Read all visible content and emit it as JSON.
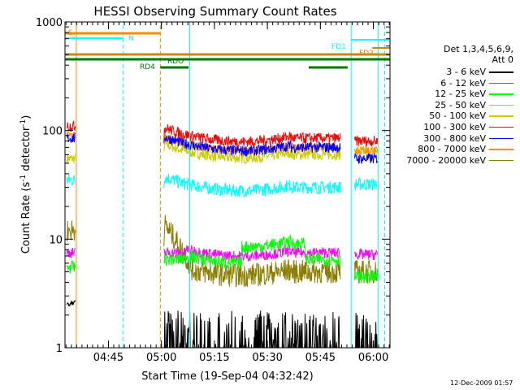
{
  "chart_data": {
    "type": "line",
    "title": "HESSI Observing Summary Count Rates",
    "xlabel": "Start Time (19-Sep-04 04:32:42)",
    "ylabel_main": "Count Rate (s",
    "ylabel_sup1": "-1",
    "ylabel_mid": " detector",
    "ylabel_sup2": "-1",
    "ylabel_end": ")",
    "yscale": "log",
    "ylim": [
      1,
      1000
    ],
    "xlim_minutes": [
      0,
      92
    ],
    "x_ticks": [
      {
        "label": "04:45",
        "t": 12.3
      },
      {
        "label": "05:00",
        "t": 27.3
      },
      {
        "label": "05:15",
        "t": 42.3
      },
      {
        "label": "05:30",
        "t": 57.3
      },
      {
        "label": "05:45",
        "t": 72.3
      },
      {
        "label": "06:00",
        "t": 87.3
      }
    ],
    "y_ticks": [
      {
        "label": "1",
        "v": 1
      },
      {
        "label": "10",
        "v": 10
      },
      {
        "label": "100",
        "v": 100
      },
      {
        "label": "1000",
        "v": 1000
      }
    ],
    "series": [
      {
        "name": "3 - 6 keV",
        "color": "#000000",
        "level": [
          2.5,
          1.3,
          1.3
        ]
      },
      {
        "name": "6 - 12 keV",
        "color": "#ff00ff",
        "level": [
          7.5,
          7.5,
          7.2
        ]
      },
      {
        "name": "12 - 25 keV",
        "color": "#00ff00",
        "level": [
          5.5,
          6.5,
          4.5
        ]
      },
      {
        "name": "25 - 50 keV",
        "color": "#00ffff",
        "level": [
          35,
          30,
          32
        ]
      },
      {
        "name": "50 - 100 keV",
        "color": "#cccc00",
        "level": [
          55,
          60,
          65
        ]
      },
      {
        "name": "100 - 300 keV",
        "color": "#ff0000",
        "level": [
          110,
          85,
          80
        ]
      },
      {
        "name": "300 - 800 keV",
        "color": "#0000ff",
        "level": [
          85,
          70,
          55
        ]
      },
      {
        "name": "800 - 7000 keV",
        "color": "#ff8800",
        "level": [
          90,
          70,
          65
        ]
      },
      {
        "name": "7000 - 20000 keV",
        "color": "#8b7d00",
        "level": [
          12,
          5,
          5
        ]
      }
    ],
    "legend_header": [
      "Det 1,3,4,5,6,9,",
      "Att 0"
    ],
    "flag_bars": [
      {
        "label": "S",
        "color": "#ff8800"
      },
      {
        "label": "N",
        "color": "#00ffff"
      },
      {
        "label": "FD1",
        "color": "#00ffff"
      },
      {
        "label": "FD2",
        "color": "#cc8800"
      },
      {
        "label": "RDO",
        "color": "#007700"
      },
      {
        "label": "RD4",
        "color": "#007700"
      }
    ]
  },
  "timestamp": "12-Dec-2009 01:57"
}
